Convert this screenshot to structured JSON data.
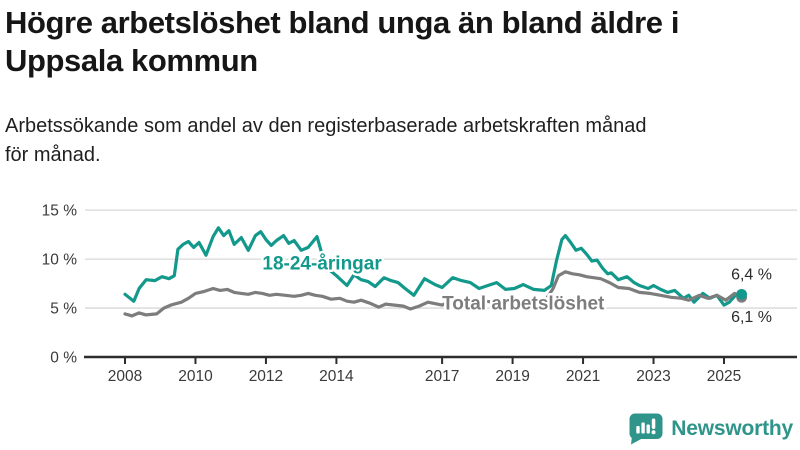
{
  "title": {
    "lines": [
      "Högre arbetslöshet bland unga än bland äldre i",
      "Uppsala kommun"
    ]
  },
  "subtitle": {
    "lines": [
      "Arbetssökande som andel av den registerbaserade arbetskraften månad",
      "för månad."
    ]
  },
  "logo": {
    "text": "Newsworthy",
    "color": "#2f958a"
  },
  "chart_data": {
    "type": "line",
    "title": "Högre arbetslöshet bland unga än bland äldre i Uppsala kommun",
    "subtitle": "Arbetssökande som andel av den registerbaserade arbetskraften månad för månad.",
    "xlabel": "",
    "ylabel": "",
    "grid": true,
    "legend_position": "inline",
    "x_range": [
      2007.9,
      2025.6
    ],
    "y_range": [
      0,
      15.5
    ],
    "x_ticks": [
      {
        "year": 2008,
        "label": "2008"
      },
      {
        "year": 2010,
        "label": "2010"
      },
      {
        "year": 2012,
        "label": "2012"
      },
      {
        "year": 2014,
        "label": "2014"
      },
      {
        "year": 2017,
        "label": "2017"
      },
      {
        "year": 2019,
        "label": "2019"
      },
      {
        "year": 2021,
        "label": "2021"
      },
      {
        "year": 2023,
        "label": "2023"
      },
      {
        "year": 2025,
        "label": "2025"
      }
    ],
    "y_ticks": [
      {
        "value": 0,
        "label": "0 %"
      },
      {
        "value": 5,
        "label": "5 %"
      },
      {
        "value": 10,
        "label": "10 %"
      },
      {
        "value": 15,
        "label": "15 %"
      }
    ],
    "series": [
      {
        "name": "18-24-åringar",
        "color": "#13998b",
        "inline_label": {
          "text": "18-24-åringar",
          "year": 2011.9,
          "pct": 8.95
        },
        "end_label": {
          "text": "6,4 %",
          "placement": "above"
        },
        "end_dot": true,
        "points": [
          [
            2008.0,
            6.4
          ],
          [
            2008.25,
            5.7
          ],
          [
            2008.4,
            7.0
          ],
          [
            2008.6,
            7.9
          ],
          [
            2008.85,
            7.8
          ],
          [
            2009.05,
            8.2
          ],
          [
            2009.25,
            8.0
          ],
          [
            2009.4,
            8.3
          ],
          [
            2009.5,
            11.0
          ],
          [
            2009.65,
            11.5
          ],
          [
            2009.8,
            11.8
          ],
          [
            2009.95,
            11.2
          ],
          [
            2010.1,
            11.7
          ],
          [
            2010.3,
            10.4
          ],
          [
            2010.5,
            12.3
          ],
          [
            2010.65,
            13.2
          ],
          [
            2010.8,
            12.4
          ],
          [
            2010.95,
            12.9
          ],
          [
            2011.1,
            11.5
          ],
          [
            2011.3,
            12.2
          ],
          [
            2011.5,
            10.9
          ],
          [
            2011.7,
            12.4
          ],
          [
            2011.85,
            12.8
          ],
          [
            2012.0,
            12.0
          ],
          [
            2012.15,
            11.4
          ],
          [
            2012.3,
            11.9
          ],
          [
            2012.5,
            12.4
          ],
          [
            2012.65,
            11.6
          ],
          [
            2012.8,
            11.9
          ],
          [
            2013.0,
            10.9
          ],
          [
            2013.2,
            11.2
          ],
          [
            2013.45,
            12.3
          ],
          [
            2013.6,
            10.4
          ],
          [
            2013.8,
            8.9
          ],
          [
            2014.0,
            8.3
          ],
          [
            2014.3,
            7.3
          ],
          [
            2014.5,
            8.4
          ],
          [
            2014.7,
            7.9
          ],
          [
            2014.9,
            7.7
          ],
          [
            2015.1,
            7.2
          ],
          [
            2015.35,
            8.1
          ],
          [
            2015.55,
            7.8
          ],
          [
            2015.75,
            7.6
          ],
          [
            2015.95,
            7.0
          ],
          [
            2016.2,
            6.3
          ],
          [
            2016.5,
            8.0
          ],
          [
            2016.8,
            7.4
          ],
          [
            2017.0,
            7.1
          ],
          [
            2017.3,
            8.1
          ],
          [
            2017.55,
            7.8
          ],
          [
            2017.8,
            7.6
          ],
          [
            2018.05,
            7.0
          ],
          [
            2018.3,
            7.3
          ],
          [
            2018.55,
            7.6
          ],
          [
            2018.8,
            6.9
          ],
          [
            2019.05,
            7.0
          ],
          [
            2019.3,
            7.4
          ],
          [
            2019.6,
            6.9
          ],
          [
            2019.9,
            6.8
          ],
          [
            2020.1,
            7.3
          ],
          [
            2020.25,
            9.9
          ],
          [
            2020.4,
            12.0
          ],
          [
            2020.5,
            12.4
          ],
          [
            2020.65,
            11.7
          ],
          [
            2020.8,
            10.9
          ],
          [
            2020.95,
            11.1
          ],
          [
            2021.1,
            10.5
          ],
          [
            2021.25,
            9.8
          ],
          [
            2021.4,
            9.9
          ],
          [
            2021.55,
            9.1
          ],
          [
            2021.7,
            8.5
          ],
          [
            2021.8,
            8.6
          ],
          [
            2022.0,
            7.9
          ],
          [
            2022.25,
            8.2
          ],
          [
            2022.45,
            7.6
          ],
          [
            2022.6,
            7.3
          ],
          [
            2022.85,
            7.0
          ],
          [
            2023.0,
            7.3
          ],
          [
            2023.2,
            6.9
          ],
          [
            2023.4,
            6.6
          ],
          [
            2023.6,
            6.8
          ],
          [
            2023.85,
            6.0
          ],
          [
            2024.0,
            6.3
          ],
          [
            2024.15,
            5.6
          ],
          [
            2024.4,
            6.5
          ],
          [
            2024.6,
            6.0
          ],
          [
            2024.8,
            6.3
          ],
          [
            2025.0,
            5.3
          ],
          [
            2025.15,
            5.6
          ],
          [
            2025.35,
            6.4
          ],
          [
            2025.5,
            6.4
          ]
        ]
      },
      {
        "name": "Total arbetslöshet",
        "color": "#7d7d7d",
        "inline_label": {
          "text": "Total arbetslöshet",
          "year": 2017.0,
          "pct": 4.85
        },
        "end_label": {
          "text": "6,1 %",
          "placement": "below"
        },
        "end_dot": true,
        "points": [
          [
            2008.0,
            4.4
          ],
          [
            2008.2,
            4.2
          ],
          [
            2008.4,
            4.5
          ],
          [
            2008.6,
            4.3
          ],
          [
            2008.9,
            4.4
          ],
          [
            2009.1,
            5.0
          ],
          [
            2009.3,
            5.3
          ],
          [
            2009.6,
            5.6
          ],
          [
            2009.8,
            6.0
          ],
          [
            2010.0,
            6.5
          ],
          [
            2010.25,
            6.7
          ],
          [
            2010.5,
            7.0
          ],
          [
            2010.7,
            6.8
          ],
          [
            2010.9,
            6.9
          ],
          [
            2011.1,
            6.6
          ],
          [
            2011.3,
            6.5
          ],
          [
            2011.5,
            6.4
          ],
          [
            2011.7,
            6.6
          ],
          [
            2011.9,
            6.5
          ],
          [
            2012.1,
            6.3
          ],
          [
            2012.3,
            6.4
          ],
          [
            2012.55,
            6.3
          ],
          [
            2012.8,
            6.2
          ],
          [
            2013.0,
            6.3
          ],
          [
            2013.2,
            6.5
          ],
          [
            2013.4,
            6.3
          ],
          [
            2013.6,
            6.2
          ],
          [
            2013.85,
            5.9
          ],
          [
            2014.1,
            6.0
          ],
          [
            2014.3,
            5.7
          ],
          [
            2014.5,
            5.6
          ],
          [
            2014.7,
            5.8
          ],
          [
            2014.95,
            5.5
          ],
          [
            2015.2,
            5.1
          ],
          [
            2015.4,
            5.4
          ],
          [
            2015.65,
            5.3
          ],
          [
            2015.9,
            5.2
          ],
          [
            2016.1,
            4.9
          ],
          [
            2016.35,
            5.2
          ],
          [
            2016.6,
            5.6
          ],
          [
            2017.0,
            5.3
          ],
          [
            2017.3,
            5.8
          ],
          [
            2017.6,
            5.7
          ],
          [
            2017.9,
            5.5
          ],
          [
            2018.2,
            5.7
          ],
          [
            2018.5,
            5.6
          ],
          [
            2018.8,
            5.4
          ],
          [
            2019.1,
            5.5
          ],
          [
            2019.4,
            5.6
          ],
          [
            2019.7,
            5.6
          ],
          [
            2019.95,
            5.9
          ],
          [
            2020.15,
            7.0
          ],
          [
            2020.3,
            8.3
          ],
          [
            2020.5,
            8.7
          ],
          [
            2020.7,
            8.5
          ],
          [
            2020.9,
            8.4
          ],
          [
            2021.1,
            8.2
          ],
          [
            2021.3,
            8.1
          ],
          [
            2021.5,
            8.0
          ],
          [
            2021.75,
            7.6
          ],
          [
            2022.0,
            7.1
          ],
          [
            2022.3,
            7.0
          ],
          [
            2022.6,
            6.6
          ],
          [
            2022.9,
            6.5
          ],
          [
            2023.2,
            6.3
          ],
          [
            2023.5,
            6.1
          ],
          [
            2023.8,
            6.0
          ],
          [
            2024.0,
            5.8
          ],
          [
            2024.3,
            6.3
          ],
          [
            2024.55,
            6.0
          ],
          [
            2024.8,
            6.3
          ],
          [
            2025.05,
            5.8
          ],
          [
            2025.3,
            6.5
          ],
          [
            2025.5,
            6.1
          ]
        ]
      }
    ],
    "annotations": [
      {
        "text": "6,4 %",
        "series": "18-24-åringar"
      },
      {
        "text": "6,1 %",
        "series": "Total arbetslöshet"
      }
    ],
    "colors": {
      "gridline": "#d8d8d8",
      "axis": "#2d2d2d",
      "tick_text": "#3a3a3a",
      "value_label_text": "#2b2b2b"
    }
  }
}
